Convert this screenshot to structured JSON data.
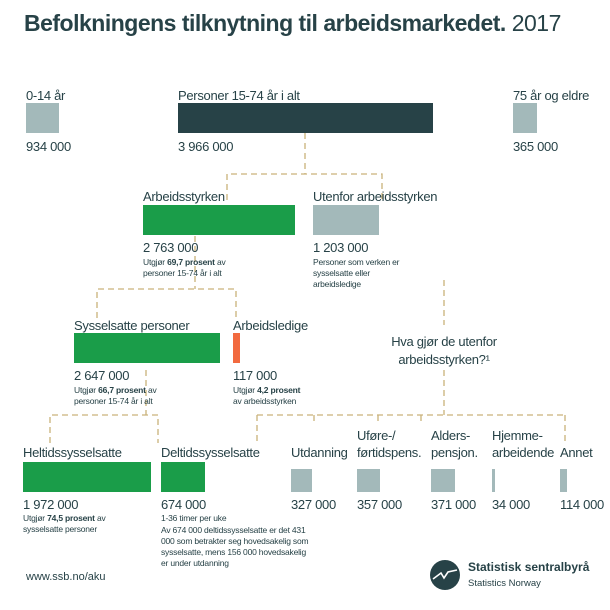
{
  "title": {
    "main": "Befolkningens tilknytning til arbeidsmarkedet.",
    "year": "2017"
  },
  "top": [
    {
      "label": "0-14 år",
      "value": "934 000"
    },
    {
      "label": "Personer 15-74 år i alt",
      "value": "3 966 000"
    },
    {
      "label": "75 år og eldre",
      "value": "365 000"
    }
  ],
  "labour_force": {
    "label": "Arbeidsstyrken",
    "value": "2 763 000",
    "note_pre": "Utgjør ",
    "note_bold": "69,7 prosent",
    "note_post": " av personer 15-74 år i alt"
  },
  "outside": {
    "label": "Utenfor arbeidsstyrken",
    "value": "1 203 000",
    "note": "Personer som verken er sysselsatte eller arbeidsledige"
  },
  "employed": {
    "label": "Sysselsatte personer",
    "value": "2 647 000",
    "note_pre": "Utgjør ",
    "note_bold": "66,7 prosent",
    "note_post": " av personer 15-74 år i alt"
  },
  "unemployed": {
    "label": "Arbeidsledige",
    "value": "117 000",
    "note_pre": "Utgjør ",
    "note_bold": "4,2 prosent",
    "note_post": " av arbeidsstyrken"
  },
  "question": "Hva gjør de utenfor arbeidsstyrken?¹",
  "fulltime": {
    "label": "Heltidssysselsatte",
    "value": "1 972 000",
    "note_pre": "Utgjør ",
    "note_bold": "74,5 prosent",
    "note_post": " av sysselsatte personer"
  },
  "parttime": {
    "label": "Deltidssysselsatte",
    "value": "674 000",
    "note1": "1-36 timer per uke",
    "note2": "Av 674 000 deltidssysselsatte er det 431 000 som betrakter seg hovedsakelig som sysselsatte, mens 156 000 hovedsakelig er under utdanning"
  },
  "outside_groups": [
    {
      "label1": "",
      "label2": "Utdanning",
      "value": "327 000"
    },
    {
      "label1": "Uføre-/",
      "label2": "førtidspens.",
      "value": "357 000"
    },
    {
      "label1": "Alders-",
      "label2": "pensjon.",
      "value": "371 000"
    },
    {
      "label1": "Hjemme-",
      "label2": "arbeidende",
      "value": "34 000"
    },
    {
      "label1": "",
      "label2": "Annet",
      "value": "114 000"
    }
  ],
  "footer": {
    "url": "www.ssb.no/aku",
    "brand": "Statistisk sentralbyrå",
    "brand_sub": "Statistics Norway"
  },
  "colors": {
    "green": "#1a9d49",
    "grey": "#a3b9ba",
    "dark": "#274247",
    "orange": "#f26a3f",
    "connector": "#c9b27a"
  }
}
